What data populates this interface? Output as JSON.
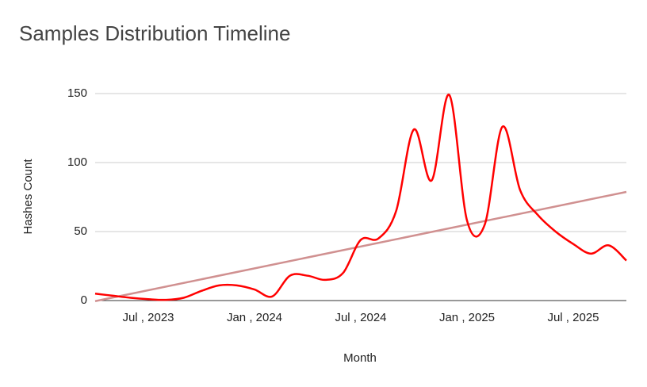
{
  "chart_data": {
    "type": "line",
    "title": "Samples Distribution Timeline",
    "x_label": "Month",
    "y_label": "Hashes Count",
    "categories": [
      null,
      null,
      null,
      "Jul , 2023",
      null,
      null,
      null,
      null,
      null,
      "Jan , 2024",
      null,
      null,
      null,
      null,
      null,
      "Jul , 2024",
      null,
      null,
      null,
      null,
      null,
      "Jan , 2025",
      null,
      null,
      null,
      null,
      null,
      "Jul , 2025",
      null,
      null,
      null
    ],
    "series": [
      {
        "name": "Hashes Count",
        "color": "#ff0000",
        "values": [
          5,
          3.5,
          2,
          1,
          0.5,
          2,
          7,
          11,
          11,
          8,
          3,
          18,
          18,
          15,
          20,
          44,
          45,
          65,
          124,
          87,
          149,
          58,
          55,
          126,
          80,
          62,
          50,
          41,
          34,
          40,
          29
        ]
      }
    ],
    "trendline": {
      "color": "#d09090"
    },
    "ylim": [
      0,
      150
    ],
    "yticks": [
      0,
      50,
      100,
      150
    ],
    "grid": true
  }
}
